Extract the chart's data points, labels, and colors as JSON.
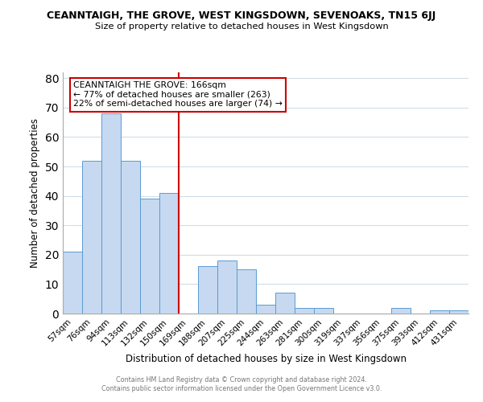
{
  "title": "CEANNTAIGH, THE GROVE, WEST KINGSDOWN, SEVENOAKS, TN15 6JJ",
  "subtitle": "Size of property relative to detached houses in West Kingsdown",
  "xlabel": "Distribution of detached houses by size in West Kingsdown",
  "ylabel": "Number of detached properties",
  "bar_labels": [
    "57sqm",
    "76sqm",
    "94sqm",
    "113sqm",
    "132sqm",
    "150sqm",
    "169sqm",
    "188sqm",
    "207sqm",
    "225sqm",
    "244sqm",
    "263sqm",
    "281sqm",
    "300sqm",
    "319sqm",
    "337sqm",
    "356sqm",
    "375sqm",
    "393sqm",
    "412sqm",
    "431sqm"
  ],
  "bar_values": [
    21,
    52,
    68,
    52,
    39,
    41,
    0,
    16,
    18,
    15,
    3,
    7,
    2,
    2,
    0,
    0,
    0,
    2,
    0,
    1,
    1
  ],
  "bar_color": "#c6d9f0",
  "bar_edge_color": "#5a9bd4",
  "vline_color": "#cc0000",
  "annotation_title": "CEANNTAIGH THE GROVE: 166sqm",
  "annotation_line1": "← 77% of detached houses are smaller (263)",
  "annotation_line2": "22% of semi-detached houses are larger (74) →",
  "annotation_box_edge": "#cc0000",
  "ylim": [
    0,
    82
  ],
  "yticks": [
    0,
    10,
    20,
    30,
    40,
    50,
    60,
    70,
    80
  ],
  "footer_line1": "Contains HM Land Registry data © Crown copyright and database right 2024.",
  "footer_line2": "Contains public sector information licensed under the Open Government Licence v3.0.",
  "background_color": "#ffffff",
  "grid_color": "#d0dde8"
}
